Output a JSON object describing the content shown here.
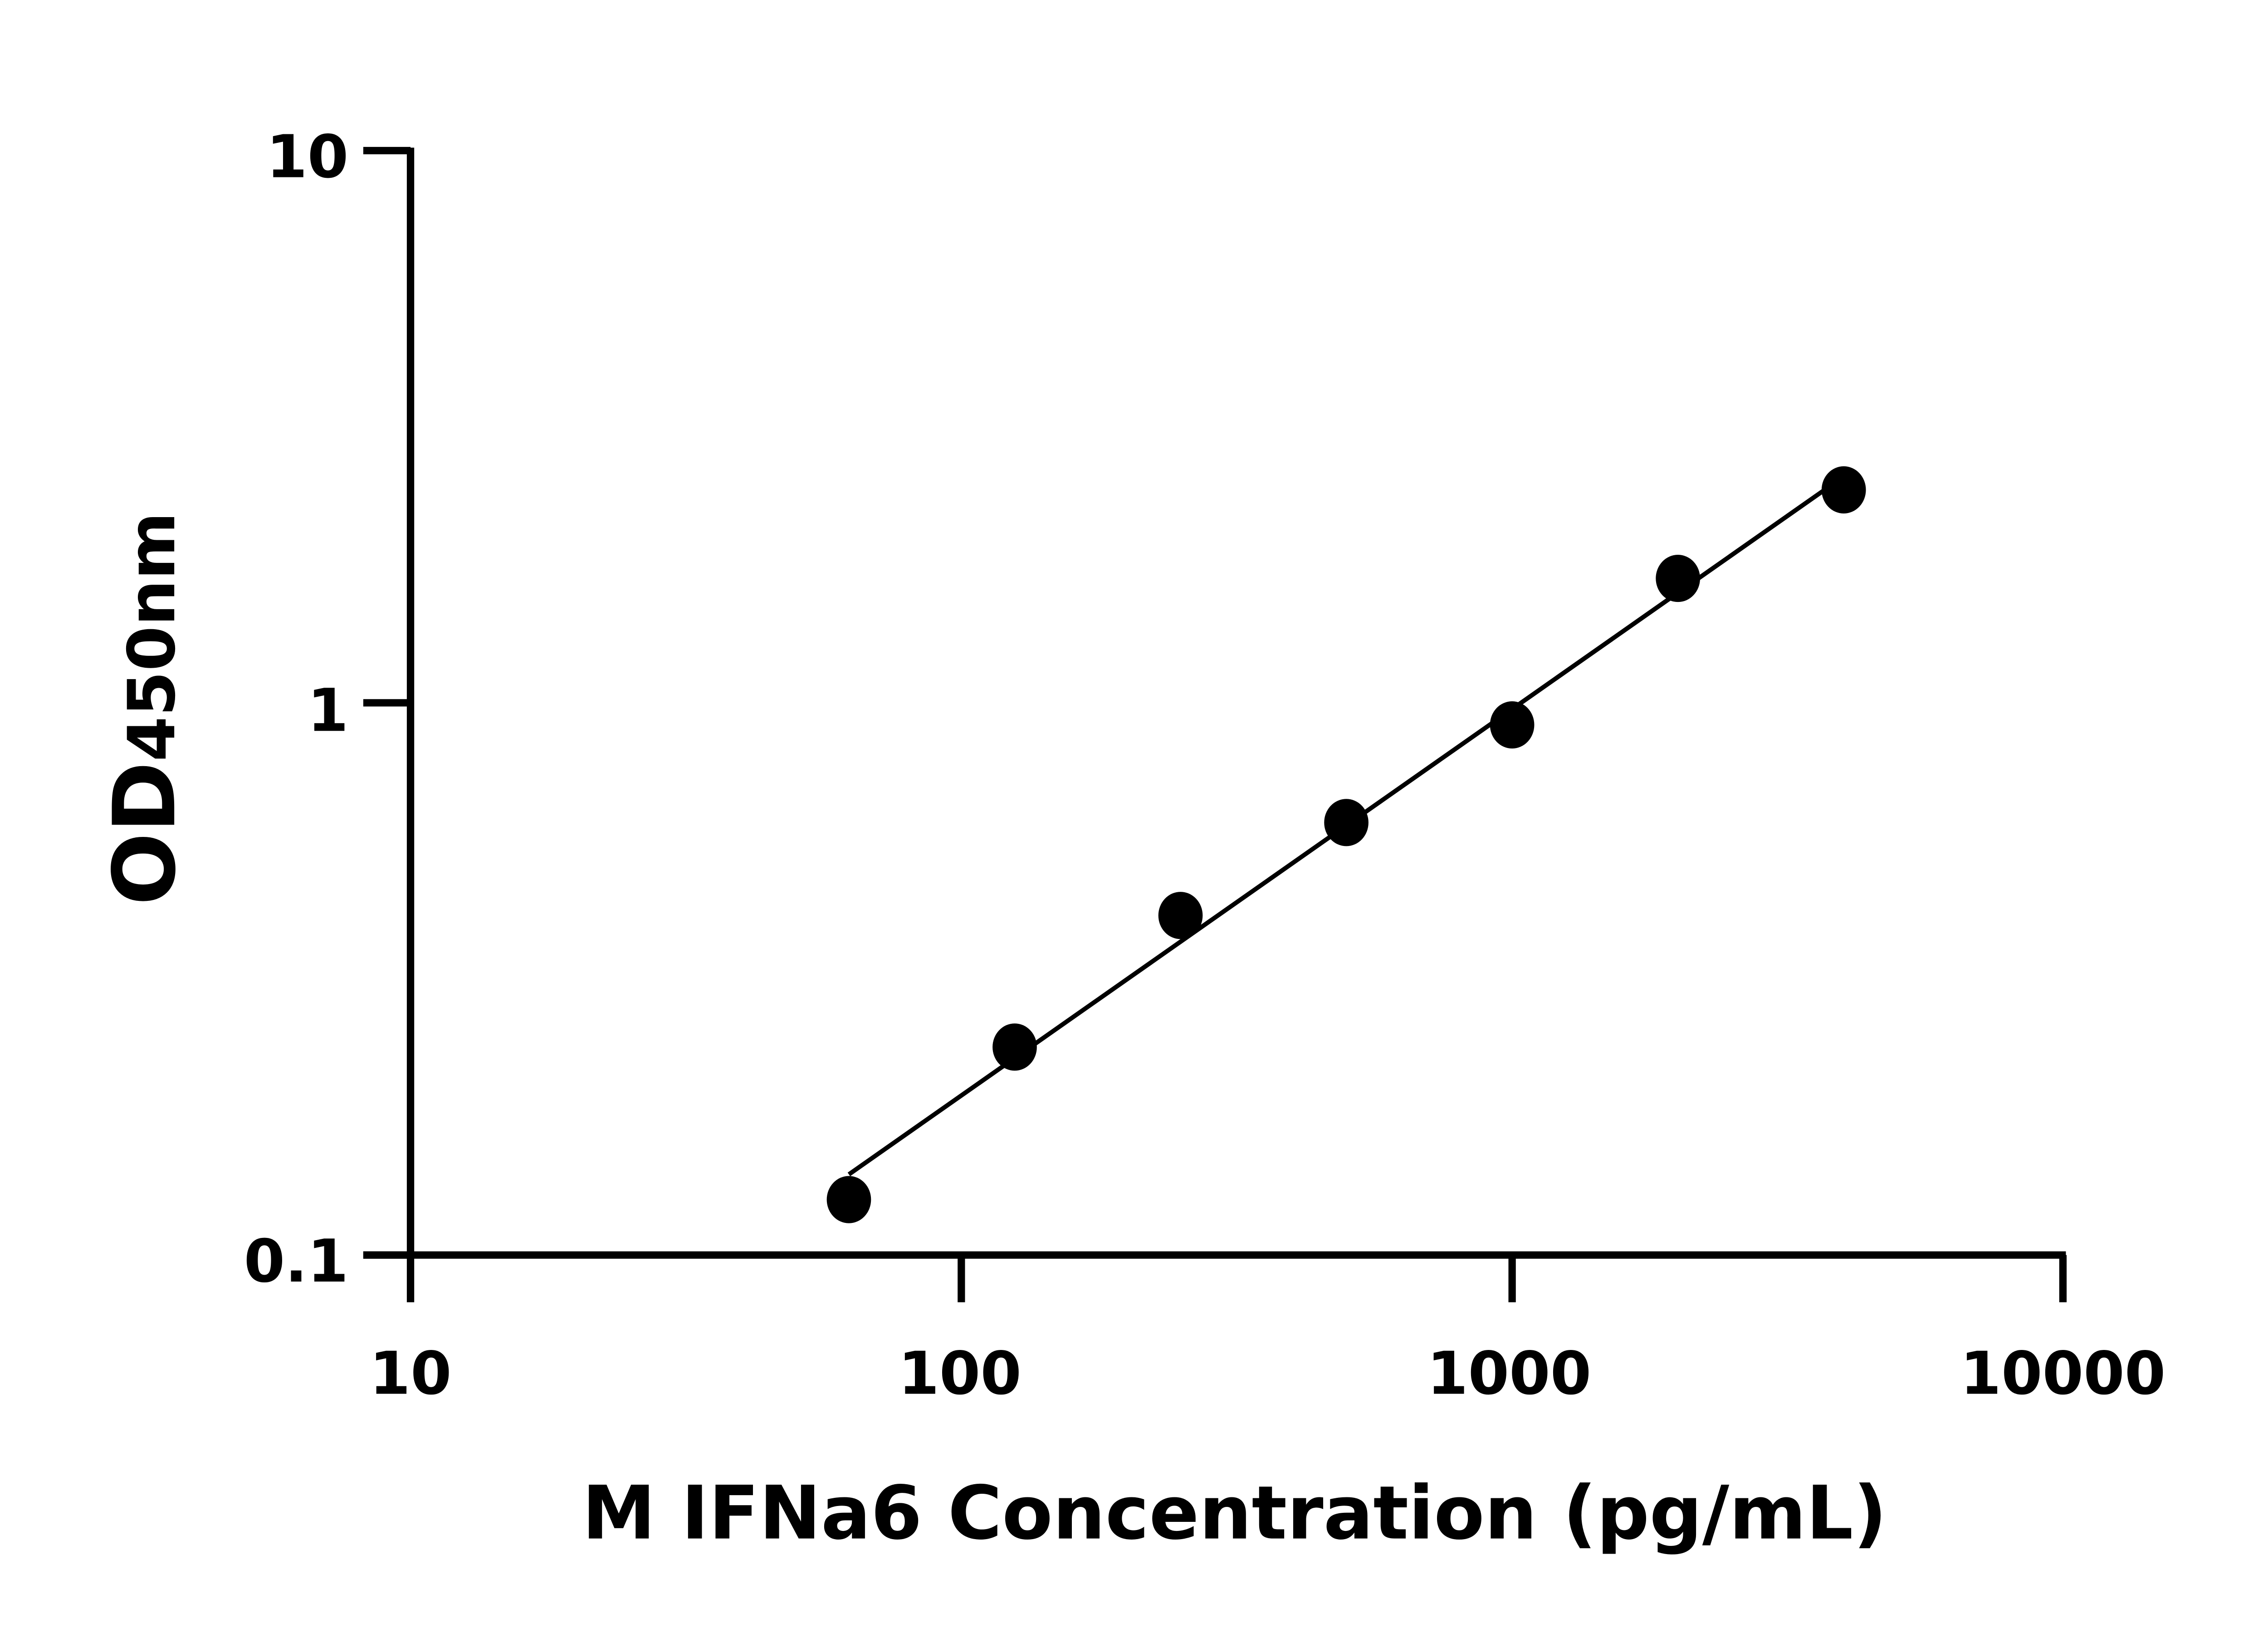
{
  "chart_data": {
    "type": "scatter",
    "title": "",
    "xlabel": "M IFNa6 Concentration (pg/mL)",
    "ylabel": {
      "main": "OD",
      "sub": "450nm"
    },
    "x_scale": "log",
    "y_scale": "log",
    "xlim": [
      10,
      10000
    ],
    "ylim": [
      0.1,
      10
    ],
    "x_ticks": [
      "10",
      "100",
      "1000",
      "10000"
    ],
    "y_ticks": [
      "0.1",
      "1",
      "10"
    ],
    "grid": false,
    "legend": "none",
    "fit_line": "linear fit in log-log space",
    "series": [
      {
        "x": [
          62.5,
          125,
          250,
          500,
          1000,
          2000,
          4000
        ],
        "y": [
          0.126,
          0.238,
          0.412,
          0.607,
          0.912,
          1.68,
          2.43
        ]
      }
    ],
    "colors": {
      "points": "#000000",
      "line": "#000000",
      "axes": "#000000"
    }
  }
}
